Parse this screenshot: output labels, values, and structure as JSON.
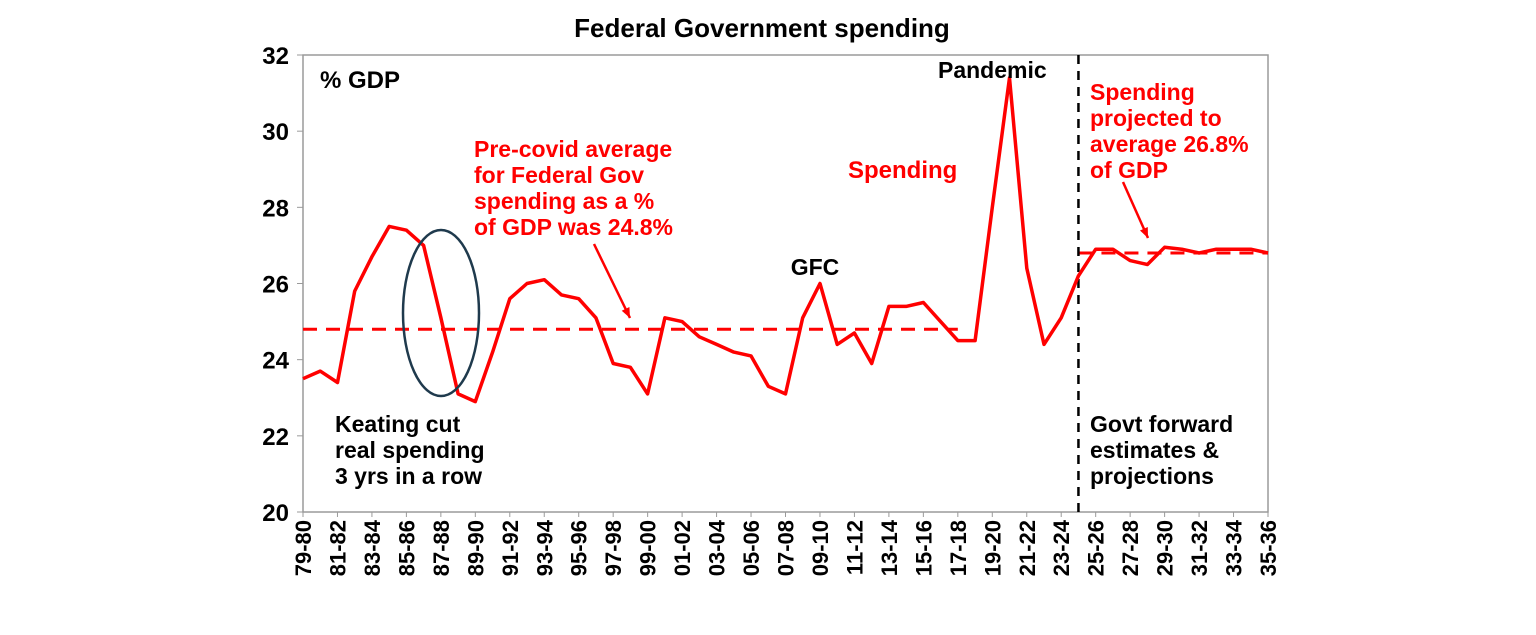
{
  "chart_data": {
    "type": "line",
    "title": "Federal Government spending",
    "ylabel": "% GDP",
    "ylim": [
      20,
      32
    ],
    "yticks": [
      20,
      22,
      24,
      26,
      28,
      30,
      32
    ],
    "grid": false,
    "categories": [
      "79-80",
      "80-81",
      "81-82",
      "82-83",
      "83-84",
      "84-85",
      "85-86",
      "86-87",
      "87-88",
      "88-89",
      "89-90",
      "90-91",
      "91-92",
      "92-93",
      "93-94",
      "94-95",
      "95-96",
      "96-97",
      "97-98",
      "98-99",
      "99-00",
      "00-01",
      "01-02",
      "02-03",
      "03-04",
      "04-05",
      "05-06",
      "06-07",
      "07-08",
      "08-09",
      "09-10",
      "10-11",
      "11-12",
      "12-13",
      "13-14",
      "14-15",
      "15-16",
      "16-17",
      "17-18",
      "18-19",
      "19-20",
      "20-21",
      "21-22",
      "22-23",
      "23-24",
      "24-25",
      "25-26",
      "26-27",
      "27-28",
      "28-29",
      "29-30",
      "30-31",
      "31-32",
      "32-33",
      "33-34",
      "34-35",
      "35-36"
    ],
    "tick_labels": [
      "79-80",
      "81-82",
      "83-84",
      "85-86",
      "87-88",
      "89-90",
      "91-92",
      "93-94",
      "95-96",
      "97-98",
      "99-00",
      "01-02",
      "03-04",
      "05-06",
      "07-08",
      "09-10",
      "11-12",
      "13-14",
      "15-16",
      "17-18",
      "19-20",
      "21-22",
      "23-24",
      "25-26",
      "27-28",
      "29-30",
      "31-32",
      "33-34",
      "35-36"
    ],
    "series": [
      {
        "name": "Spending",
        "color": "#ff0000",
        "values": [
          23.5,
          23.7,
          23.4,
          25.8,
          26.7,
          27.5,
          27.4,
          27.0,
          25.1,
          23.1,
          22.9,
          24.2,
          25.6,
          26.0,
          26.1,
          25.7,
          25.6,
          25.1,
          23.9,
          23.8,
          23.1,
          25.1,
          25.0,
          24.6,
          24.4,
          24.2,
          24.1,
          23.3,
          23.1,
          25.1,
          26.0,
          24.4,
          24.7,
          23.9,
          25.4,
          25.4,
          25.5,
          25.0,
          24.5,
          24.5,
          28.0,
          31.4,
          26.4,
          24.4,
          25.1,
          26.2,
          26.9,
          26.9,
          26.6,
          26.5,
          26.95,
          26.9,
          26.8,
          26.9,
          26.9,
          26.9,
          26.8
        ]
      }
    ],
    "reference_lines": [
      {
        "kind": "horizontal-dashed",
        "value": 24.8,
        "from": "79-80",
        "to": "17-18",
        "color": "#ff0000"
      },
      {
        "kind": "horizontal-dashed",
        "value": 26.8,
        "from": "24-25",
        "to": "35-36",
        "color": "#ff0000"
      },
      {
        "kind": "vertical-dashed",
        "at": "24-25",
        "color": "#000000"
      }
    ],
    "annotations": {
      "series_label": "Spending",
      "pandemic": "Pandemic",
      "gfc": "GFC",
      "precovid": [
        "Pre-covid average",
        "for Federal Gov",
        "spending as a %",
        "of GDP was 24.8%"
      ],
      "projected": [
        "Spending",
        "projected to",
        "average 26.8%",
        "of GDP"
      ],
      "keating": [
        "Keating cut",
        "real spending",
        "3 yrs in a row"
      ],
      "forward": [
        "Govt forward",
        "estimates &",
        "projections"
      ]
    },
    "colors": {
      "series": "#ff0000",
      "ellipse": "#1f3a4d",
      "text": "#000000"
    }
  }
}
